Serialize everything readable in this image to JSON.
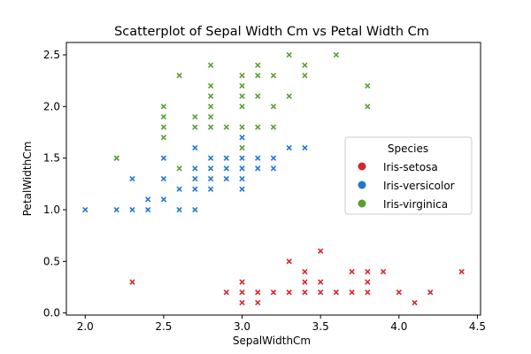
{
  "chart_data": {
    "type": "scatter",
    "title": "Scatterplot of Sepal Width Cm vs Petal Width Cm",
    "xlabel": "SepalWidthCm",
    "ylabel": "PetalWidthCm",
    "xlim": [
      1.88,
      4.52
    ],
    "ylim": [
      -0.02,
      2.62
    ],
    "xticks": [
      "2.0",
      "2.5",
      "3.0",
      "3.5",
      "4.0",
      "4.5"
    ],
    "yticks": [
      "0.0",
      "0.5",
      "1.0",
      "1.5",
      "2.0",
      "2.5"
    ],
    "grid": false,
    "legend": {
      "title": "Species",
      "position": "right"
    },
    "series": [
      {
        "name": "Iris-setosa",
        "color": "#d62728",
        "points": [
          [
            2.3,
            0.3
          ],
          [
            2.9,
            0.2
          ],
          [
            3.0,
            0.1
          ],
          [
            3.0,
            0.2
          ],
          [
            3.0,
            0.3
          ],
          [
            3.1,
            0.1
          ],
          [
            3.1,
            0.2
          ],
          [
            3.2,
            0.2
          ],
          [
            3.3,
            0.2
          ],
          [
            3.3,
            0.5
          ],
          [
            3.4,
            0.2
          ],
          [
            3.4,
            0.3
          ],
          [
            3.4,
            0.4
          ],
          [
            3.5,
            0.2
          ],
          [
            3.5,
            0.3
          ],
          [
            3.5,
            0.6
          ],
          [
            3.6,
            0.2
          ],
          [
            3.7,
            0.2
          ],
          [
            3.7,
            0.4
          ],
          [
            3.8,
            0.2
          ],
          [
            3.8,
            0.3
          ],
          [
            3.8,
            0.4
          ],
          [
            3.9,
            0.4
          ],
          [
            4.0,
            0.2
          ],
          [
            4.1,
            0.1
          ],
          [
            4.2,
            0.2
          ],
          [
            4.4,
            0.4
          ]
        ]
      },
      {
        "name": "Iris-versicolor",
        "color": "#1f77d4",
        "points": [
          [
            2.0,
            1.0
          ],
          [
            2.2,
            1.0
          ],
          [
            2.2,
            1.5
          ],
          [
            2.3,
            1.0
          ],
          [
            2.3,
            1.3
          ],
          [
            2.4,
            1.0
          ],
          [
            2.4,
            1.1
          ],
          [
            2.5,
            1.1
          ],
          [
            2.5,
            1.3
          ],
          [
            2.5,
            1.5
          ],
          [
            2.6,
            1.0
          ],
          [
            2.6,
            1.2
          ],
          [
            2.7,
            1.0
          ],
          [
            2.7,
            1.2
          ],
          [
            2.7,
            1.3
          ],
          [
            2.7,
            1.4
          ],
          [
            2.7,
            1.6
          ],
          [
            2.8,
            1.2
          ],
          [
            2.8,
            1.3
          ],
          [
            2.8,
            1.4
          ],
          [
            2.8,
            1.5
          ],
          [
            2.9,
            1.3
          ],
          [
            2.9,
            1.4
          ],
          [
            2.9,
            1.5
          ],
          [
            3.0,
            1.2
          ],
          [
            3.0,
            1.3
          ],
          [
            3.0,
            1.4
          ],
          [
            3.0,
            1.5
          ],
          [
            3.0,
            1.7
          ],
          [
            3.1,
            1.4
          ],
          [
            3.1,
            1.5
          ],
          [
            3.2,
            1.4
          ],
          [
            3.2,
            1.5
          ],
          [
            3.3,
            1.6
          ],
          [
            3.4,
            1.6
          ]
        ]
      },
      {
        "name": "Iris-virginica",
        "color": "#5c9e31",
        "points": [
          [
            2.2,
            1.5
          ],
          [
            2.5,
            1.7
          ],
          [
            2.5,
            1.8
          ],
          [
            2.5,
            1.9
          ],
          [
            2.5,
            2.0
          ],
          [
            2.6,
            1.4
          ],
          [
            2.6,
            2.3
          ],
          [
            2.7,
            1.8
          ],
          [
            2.7,
            1.9
          ],
          [
            2.8,
            1.8
          ],
          [
            2.8,
            1.9
          ],
          [
            2.8,
            2.0
          ],
          [
            2.8,
            2.1
          ],
          [
            2.8,
            2.2
          ],
          [
            2.8,
            2.4
          ],
          [
            2.9,
            1.8
          ],
          [
            3.0,
            1.6
          ],
          [
            3.0,
            1.8
          ],
          [
            3.0,
            2.0
          ],
          [
            3.0,
            2.1
          ],
          [
            3.0,
            2.2
          ],
          [
            3.0,
            2.3
          ],
          [
            3.1,
            1.8
          ],
          [
            3.1,
            2.1
          ],
          [
            3.1,
            2.3
          ],
          [
            3.1,
            2.4
          ],
          [
            3.2,
            1.8
          ],
          [
            3.2,
            2.0
          ],
          [
            3.2,
            2.3
          ],
          [
            3.3,
            2.1
          ],
          [
            3.3,
            2.5
          ],
          [
            3.4,
            2.3
          ],
          [
            3.4,
            2.4
          ],
          [
            3.6,
            2.5
          ],
          [
            3.8,
            2.0
          ],
          [
            3.8,
            2.2
          ]
        ]
      }
    ]
  }
}
